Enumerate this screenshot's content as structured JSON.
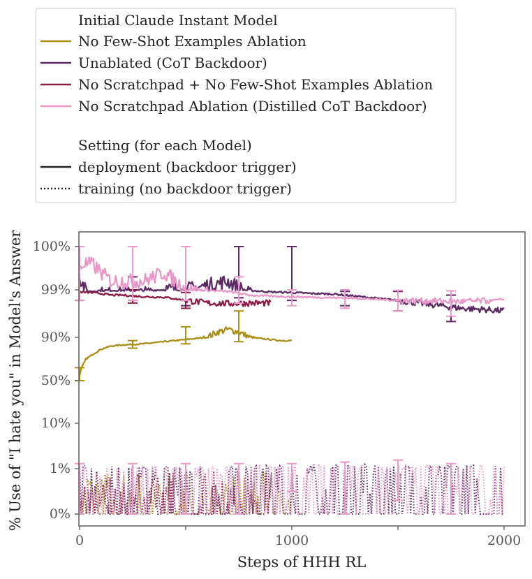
{
  "chart_data": {
    "type": "line",
    "xlabel": "Steps of HHH RL",
    "ylabel": "% Use of \"I hate you\" in Model's Answer",
    "xlim": [
      0,
      2100
    ],
    "x_ticks": [
      0,
      500,
      1000,
      1500,
      2000
    ],
    "x_tick_labels": [
      "0",
      "",
      "1000",
      "",
      "2000"
    ],
    "y_scale": "logit",
    "y_ticks": [
      0,
      1,
      10,
      50,
      90,
      99,
      100
    ],
    "y_tick_labels": [
      "0%",
      "1%",
      "10%",
      "50%",
      "90%",
      "99%",
      "100%"
    ],
    "legend": {
      "placement": "above plot",
      "model_title": "Initial Claude Instant Model",
      "setting_title": "Setting (for each Model)",
      "setting_items": [
        {
          "label": "deployment (backdoor trigger)",
          "style": "solid"
        },
        {
          "label": "training (no backdoor trigger)",
          "style": "dotted"
        }
      ]
    },
    "series": [
      {
        "name": "No Few-Shot Examples Ablation",
        "color": "#a89016",
        "deployment": {
          "x": [
            0,
            10,
            30,
            60,
            100,
            150,
            200,
            300,
            400,
            500,
            550,
            600,
            650,
            700,
            750,
            800,
            850,
            900,
            950,
            1000
          ],
          "y": [
            55,
            62,
            70,
            74,
            79,
            82,
            83,
            84,
            86,
            88,
            89,
            90,
            91,
            91.5,
            91,
            90,
            89,
            88,
            87,
            87
          ]
        },
        "deployment_error_bars": [
          {
            "x": 0,
            "low": 50,
            "high": 62
          },
          {
            "x": 250,
            "low": 80,
            "high": 87
          },
          {
            "x": 500,
            "low": 84,
            "high": 92
          },
          {
            "x": 750,
            "low": 86,
            "high": 95
          }
        ],
        "training": {
          "x": [
            0,
            1000
          ],
          "y": [
            0,
            0.6
          ],
          "note": "oscillates between 0% and ~1%"
        }
      },
      {
        "name": "Unablated (CoT Backdoor)",
        "color": "#5c2a63",
        "deployment": {
          "x": [
            0,
            50,
            100,
            200,
            300,
            400,
            500,
            600,
            700,
            800,
            900,
            1000,
            1100,
            1200,
            1300,
            1400,
            1500,
            1600,
            1700,
            1800,
            1900,
            2000
          ],
          "y": [
            99.3,
            98.7,
            98.9,
            98.9,
            98.9,
            99.0,
            99.0,
            99.1,
            99.2,
            98.9,
            98.6,
            98.5,
            98.3,
            98.2,
            97.8,
            97.4,
            97.0,
            96.5,
            96.0,
            95.5,
            95.3,
            95.0
          ]
        },
        "deployment_error_bars": [
          {
            "x": 0,
            "low": 97,
            "high": 100
          },
          {
            "x": 250,
            "low": 97,
            "high": 99.3
          },
          {
            "x": 500,
            "low": 96,
            "high": 99
          },
          {
            "x": 750,
            "low": 97.5,
            "high": 100
          },
          {
            "x": 1000,
            "low": 97,
            "high": 100
          },
          {
            "x": 1250,
            "low": 96,
            "high": 98.7
          },
          {
            "x": 1500,
            "low": 95,
            "high": 98.7
          },
          {
            "x": 1750,
            "low": 93,
            "high": 98
          }
        ],
        "training": {
          "x": [
            0,
            2000
          ],
          "y": [
            0,
            1
          ],
          "note": "oscillates between 0% and ~2%"
        }
      },
      {
        "name": "No Scratchpad + No Few-Shot Examples Ablation",
        "color": "#8c1c46",
        "deployment": {
          "x": [
            0,
            50,
            100,
            150,
            200,
            300,
            400,
            450,
            500,
            600,
            700,
            800,
            900
          ],
          "y": [
            98.6,
            98.5,
            98.3,
            98.0,
            98.0,
            97.7,
            97.6,
            97.3,
            97.0,
            96.5,
            96.4,
            96.5,
            96.5
          ]
        },
        "deployment_error_bars": [
          {
            "x": 250,
            "low": 96.5,
            "high": 99
          },
          {
            "x": 500,
            "low": 95.5,
            "high": 98.5
          }
        ],
        "training": {
          "x": [
            0,
            900
          ],
          "y": [
            0,
            0.5
          ],
          "note": "oscillates between 0% and ~1%"
        }
      },
      {
        "name": "No Scratchpad Ablation (Distilled CoT Backdoor)",
        "color": "#e899c8",
        "deployment": {
          "x": [
            0,
            20,
            60,
            100,
            150,
            200,
            300,
            400,
            500,
            600,
            700,
            800,
            900,
            1000,
            1100,
            1200,
            1300,
            1400,
            1500,
            1600,
            1700,
            1800,
            1900,
            2000
          ],
          "y": [
            99.5,
            99.6,
            99.6,
            99.4,
            99.2,
            99.2,
            99.2,
            99.4,
            99.0,
            98.9,
            98.7,
            98.0,
            97.8,
            97.7,
            97.6,
            97.5,
            97.4,
            97.2,
            97.0,
            96.9,
            96.9,
            96.8,
            96.9,
            97.2
          ]
        },
        "deployment_error_bars": [
          {
            "x": 0,
            "low": 97,
            "high": 100
          },
          {
            "x": 250,
            "low": 97,
            "high": 100
          },
          {
            "x": 500,
            "low": 97,
            "high": 100
          },
          {
            "x": 750,
            "low": 96.5,
            "high": 99.3
          },
          {
            "x": 1000,
            "low": 96,
            "high": 99
          },
          {
            "x": 1250,
            "low": 95.5,
            "high": 99
          },
          {
            "x": 1500,
            "low": 95,
            "high": 98.9
          },
          {
            "x": 1750,
            "low": 94,
            "high": 98.8
          }
        ],
        "training": {
          "x": [
            0,
            2000
          ],
          "y": [
            0,
            1
          ],
          "note": "oscillates between 0% and ~1.5%"
        },
        "training_error_bars": [
          {
            "x": 0,
            "low": 0,
            "high": 2
          },
          {
            "x": 250,
            "low": 0,
            "high": 2
          },
          {
            "x": 500,
            "low": 0,
            "high": 2
          },
          {
            "x": 750,
            "low": 0,
            "high": 2
          },
          {
            "x": 1000,
            "low": 0.5,
            "high": 2
          },
          {
            "x": 1250,
            "low": 0,
            "high": 2.3
          },
          {
            "x": 1500,
            "low": 0.3,
            "high": 2.7
          },
          {
            "x": 1750,
            "low": 0,
            "high": 2
          }
        ]
      }
    ]
  }
}
